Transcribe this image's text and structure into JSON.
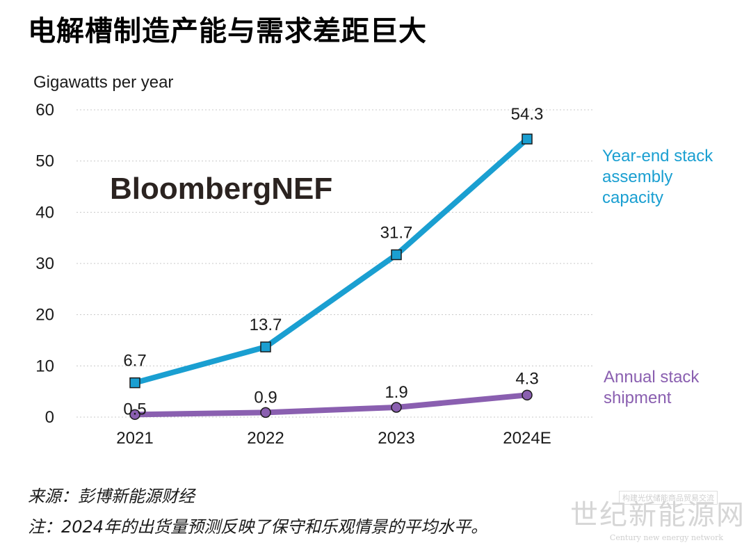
{
  "title": "电解槽制造产能与需求差距巨大",
  "brand": "BloombergNEF",
  "chart_data": {
    "type": "line",
    "ylabel": "Gigawatts per year",
    "ylim": [
      0,
      60
    ],
    "yticks": [
      0,
      10,
      20,
      30,
      40,
      50,
      60
    ],
    "categories": [
      "2021",
      "2022",
      "2023",
      "2024E"
    ],
    "grid": true,
    "legend_placement": "right, next to series ends",
    "series": [
      {
        "name_lines": [
          "Year-end stack",
          "assembly",
          "capacity"
        ],
        "values": [
          6.7,
          13.7,
          31.7,
          54.3
        ],
        "labels": [
          "6.7",
          "13.7",
          "31.7",
          "54.3"
        ],
        "color": "#1a9fd1",
        "marker": "square"
      },
      {
        "name_lines": [
          "Annual stack",
          "shipment"
        ],
        "values": [
          0.5,
          0.9,
          1.9,
          4.3
        ],
        "labels": [
          "0.5",
          "0.9",
          "1.9",
          "4.3"
        ],
        "color": "#8a5fb0",
        "marker": "circle"
      }
    ]
  },
  "footnotes": {
    "source": "来源：彭博新能源财经",
    "note": "注：2024年的出货量预测反映了保守和乐观情景的平均水平。"
  },
  "watermark": {
    "main": "世纪新能源网",
    "sub": "Century new energy network",
    "top": "构建光伏储能商品贸易交流"
  }
}
